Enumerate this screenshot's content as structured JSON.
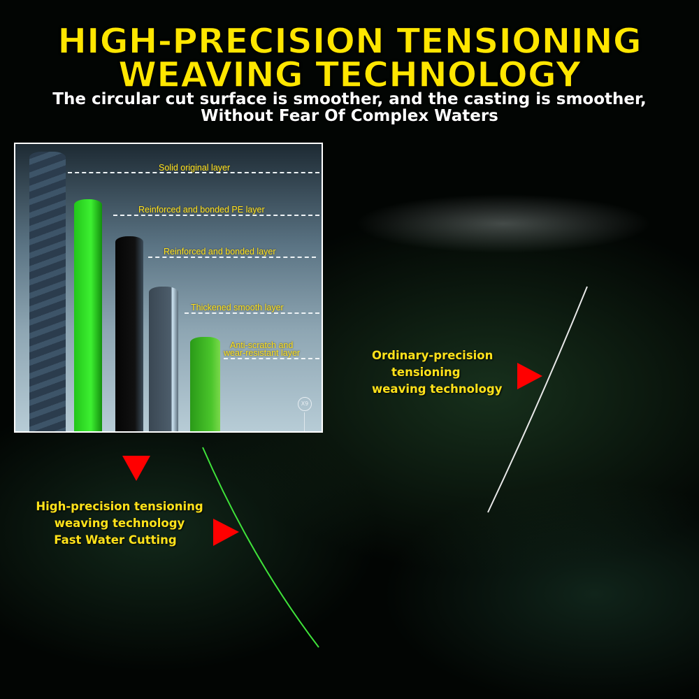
{
  "header": {
    "title_line1": "HIGH-PRECISION TENSIONING",
    "title_line2": "WEAVING TECHNOLOGY",
    "subtitle_line1": "The circular cut surface is smoother, and the casting is smoother,",
    "subtitle_line2": "Without Fear Of Complex Waters"
  },
  "inset": {
    "layers": [
      "Solid original layer",
      "Reinforced and bonded PE layer",
      "Reinforced and bonded  layer",
      "Thickened smooth layer",
      "Anti-scratch and",
      "wear-resistant layer"
    ],
    "badge": "X9"
  },
  "ordinary": {
    "line1": "Ordinary-precision",
    "line2": "tensioning",
    "line3": "weaving technology"
  },
  "high": {
    "line1": "High-precision tensioning",
    "line2": "weaving technology",
    "line3": "Fast Water Cutting"
  },
  "colors": {
    "accent_yellow": "#ffe600",
    "arrow_red": "#ff0000",
    "line_green": "#3fe23a",
    "line_white": "#e8e8e8"
  }
}
